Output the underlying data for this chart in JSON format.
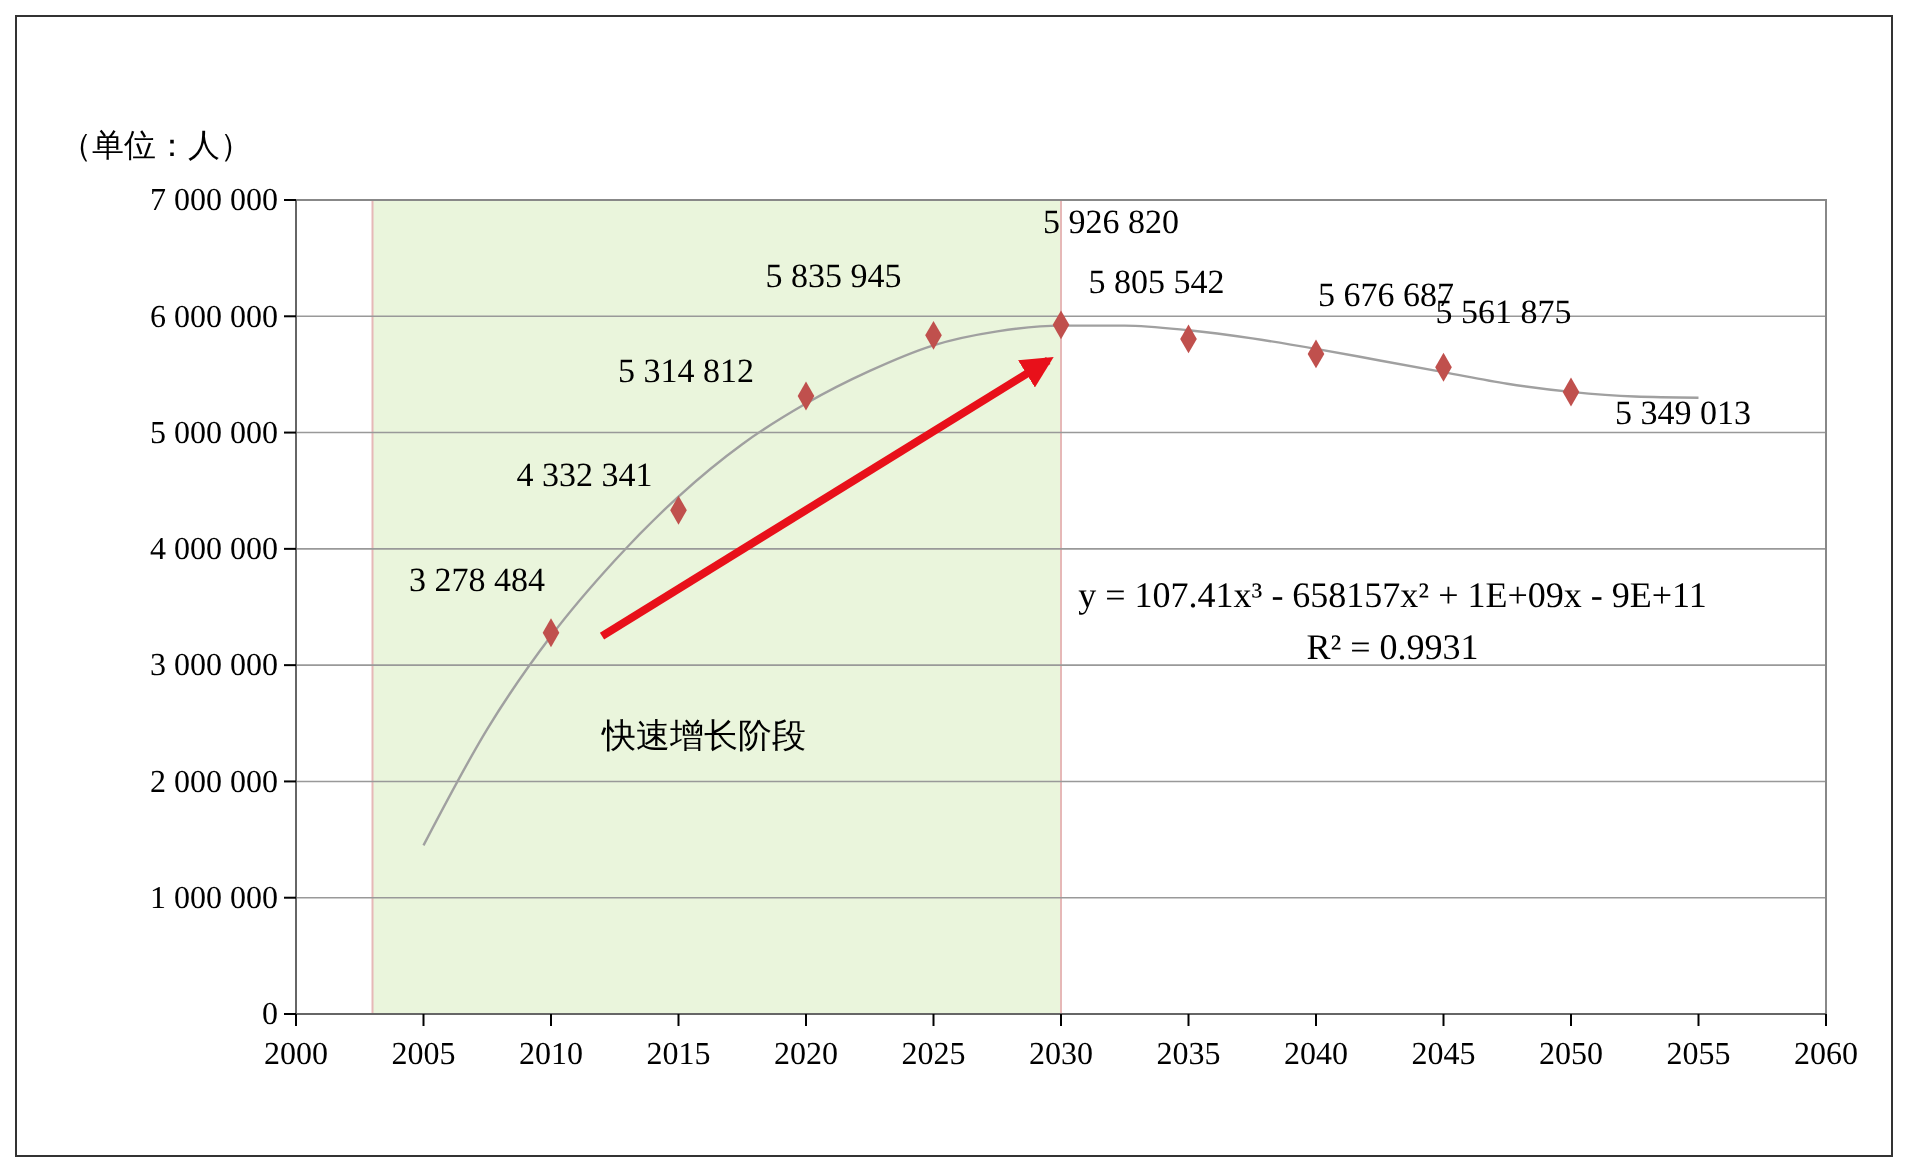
{
  "chart_data": {
    "type": "scatter",
    "ylabel": "（单位：人）",
    "x": [
      2010,
      2015,
      2020,
      2025,
      2030,
      2035,
      2040,
      2045,
      2050
    ],
    "series": [
      {
        "type": "scatter",
        "color": "#c0504d",
        "marker": "diamond",
        "values": [
          3278484,
          4332341,
          5314812,
          5835945,
          5926820,
          5805542,
          5676687,
          5561875,
          5349013
        ],
        "value_labels": [
          "3 278 484",
          "4 332 341",
          "5 314 812",
          "5 835 945",
          "5 926 820",
          "5 805 542",
          "5 676 687",
          "5 561 875",
          "5 349 013"
        ]
      },
      {
        "type": "line",
        "color": "#a0a0a0",
        "marker": "none",
        "x": [
          2005,
          2007.5,
          2010,
          2012.5,
          2015,
          2017.5,
          2020,
          2022.5,
          2025,
          2027.5,
          2030,
          2032.5,
          2035,
          2037.5,
          2040,
          2042.5,
          2045,
          2047.5,
          2050,
          2052.5,
          2055
        ],
        "values": [
          1450000,
          2450000,
          3250000,
          3900000,
          4450000,
          4900000,
          5250000,
          5530000,
          5750000,
          5870000,
          5920000,
          5920000,
          5880000,
          5810000,
          5720000,
          5620000,
          5520000,
          5420000,
          5350000,
          5310000,
          5300000
        ]
      }
    ],
    "xlim": [
      2000,
      2060
    ],
    "xticks": [
      2000,
      2005,
      2010,
      2015,
      2020,
      2025,
      2030,
      2035,
      2040,
      2045,
      2050,
      2055,
      2060
    ],
    "ylim": [
      0,
      7000000
    ],
    "yticks": [
      0,
      {
        "value": 1000000,
        "label": "1 000 000"
      },
      {
        "value": 2000000,
        "label": "2 000 000"
      },
      {
        "value": 3000000,
        "label": "3 000 000"
      },
      {
        "value": 4000000,
        "label": "4 000 000"
      },
      {
        "value": 5000000,
        "label": "5 000 000"
      },
      {
        "value": 6000000,
        "label": "6 000 000"
      },
      {
        "value": 7000000,
        "label": "7 000 000"
      }
    ],
    "grid": "y",
    "bands": [
      {
        "axis": "x",
        "from": 2003,
        "to": 2030,
        "color": "#eaf5dc"
      }
    ],
    "annotations": [
      "快速增长阶段",
      "y = 107.41x³ - 658157x² + 1E+09x - 9E+11",
      "R² = 0.9931"
    ]
  }
}
